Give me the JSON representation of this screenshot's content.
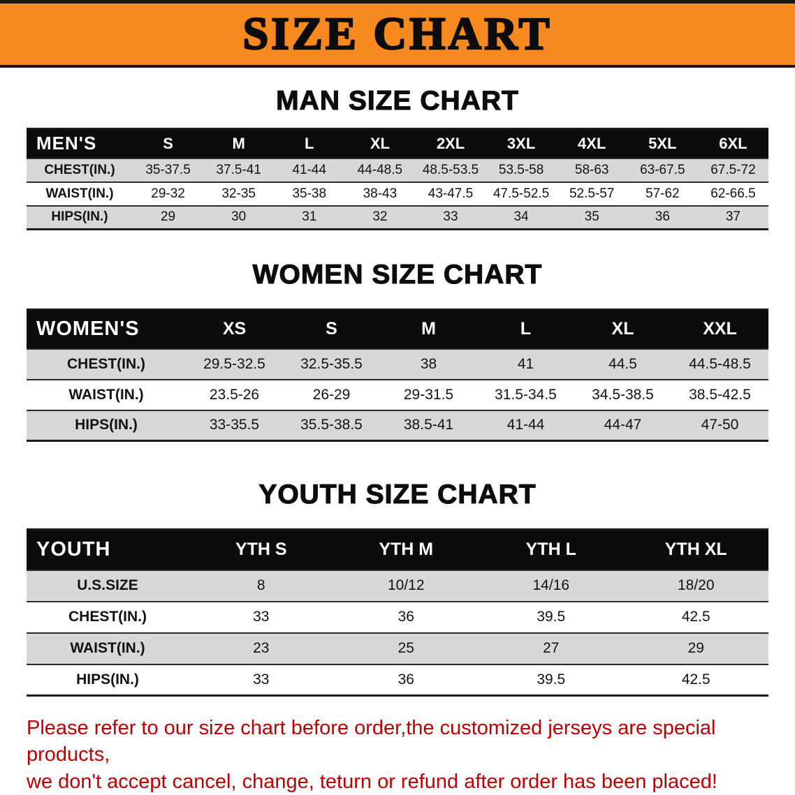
{
  "banner": {
    "title": "SIZE CHART"
  },
  "sections": [
    {
      "heading": "MAN SIZE CHART",
      "table": {
        "header": [
          "MEN'S",
          "S",
          "M",
          "L",
          "XL",
          "2XL",
          "3XL",
          "4XL",
          "5XL",
          "6XL"
        ],
        "rows": [
          [
            "CHEST(IN.)",
            "35-37.5",
            "37.5-41",
            "41-44",
            "44-48.5",
            "48.5-53.5",
            "53.5-58",
            "58-63",
            "63-67.5",
            "67.5-72"
          ],
          [
            "WAIST(IN.)",
            "29-32",
            "32-35",
            "35-38",
            "38-43",
            "43-47.5",
            "47.5-52.5",
            "52.5-57",
            "57-62",
            "62-66.5"
          ],
          [
            "HIPS(IN.)",
            "29",
            "30",
            "31",
            "32",
            "33",
            "34",
            "35",
            "36",
            "37"
          ]
        ]
      }
    },
    {
      "heading": "WOMEN SIZE CHART",
      "table": {
        "header": [
          "WOMEN'S",
          "XS",
          "S",
          "M",
          "L",
          "XL",
          "XXL"
        ],
        "rows": [
          [
            "CHEST(IN.)",
            "29.5-32.5",
            "32.5-35.5",
            "38",
            "41",
            "44.5",
            "44.5-48.5"
          ],
          [
            "WAIST(IN.)",
            "23.5-26",
            "26-29",
            "29-31.5",
            "31.5-34.5",
            "34.5-38.5",
            "38.5-42.5"
          ],
          [
            "HIPS(IN.)",
            "33-35.5",
            "35.5-38.5",
            "38.5-41",
            "41-44",
            "44-47",
            "47-50"
          ]
        ]
      }
    },
    {
      "heading": "YOUTH SIZE CHART",
      "table": {
        "header": [
          "YOUTH",
          "YTH S",
          "YTH M",
          "YTH L",
          "YTH XL"
        ],
        "rows": [
          [
            "U.S.SIZE",
            "8",
            "10/12",
            "14/16",
            "18/20"
          ],
          [
            "CHEST(IN.)",
            "33",
            "36",
            "39.5",
            "42.5"
          ],
          [
            "WAIST(IN.)",
            "23",
            "25",
            "27",
            "29"
          ],
          [
            "HIPS(IN.)",
            "33",
            "36",
            "39.5",
            "42.5"
          ]
        ]
      }
    }
  ],
  "footer": {
    "line1": "Please refer to our size chart before order,the customized jerseys are special products,",
    "line2": "we don't accept cancel, change, teturn or refund after order has been placed!"
  },
  "colors": {
    "banner_bg": "#f6891f",
    "table_header_bg": "#0c0c0c",
    "row_alt_bg": "#d8d8d8",
    "footer_text": "#c00000"
  }
}
